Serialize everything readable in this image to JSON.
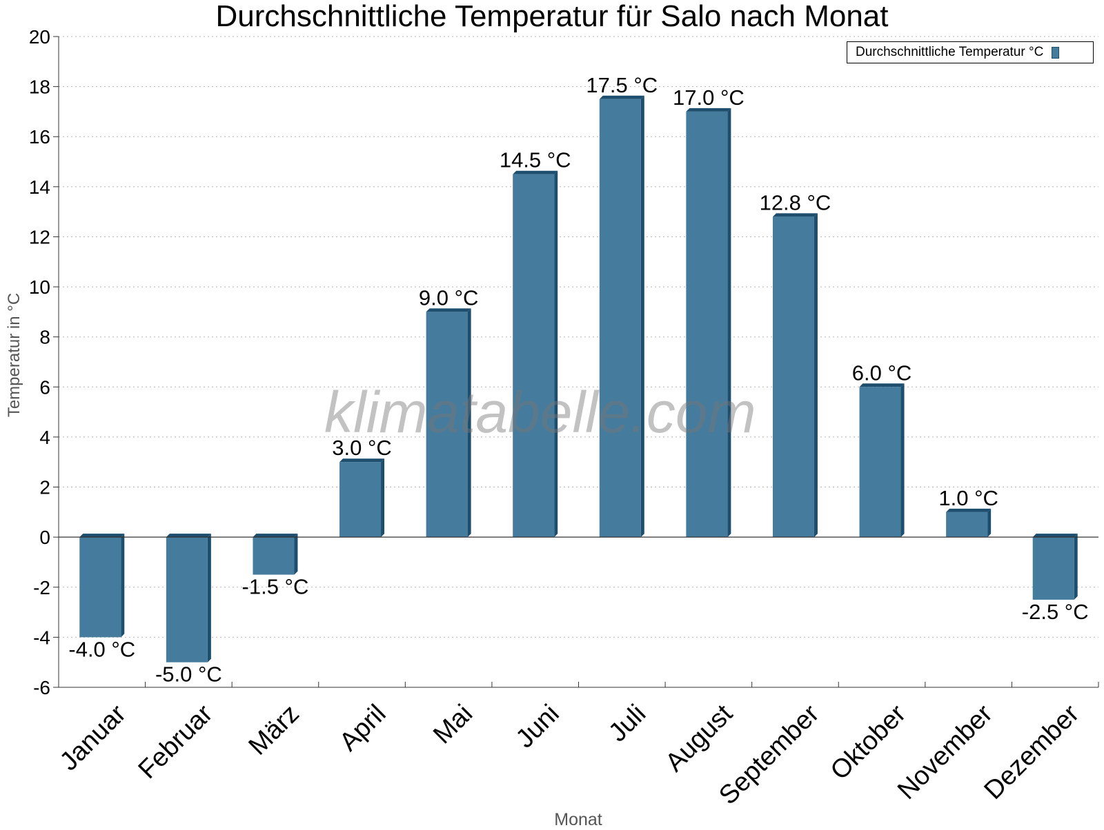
{
  "chart_data": {
    "type": "bar",
    "title": "Durchschnittliche Temperatur für Salo nach Monat",
    "xlabel": "Monat",
    "ylabel": "Temperatur in °C",
    "ylim": [
      -6,
      20
    ],
    "yticks": [
      -6,
      -4,
      -2,
      0,
      2,
      4,
      6,
      8,
      10,
      12,
      14,
      16,
      18,
      20
    ],
    "grid": true,
    "legend_position": "top-right",
    "categories": [
      "Januar",
      "Februar",
      "März",
      "April",
      "Mai",
      "Juni",
      "Juli",
      "August",
      "September",
      "Oktober",
      "November",
      "Dezember"
    ],
    "series": [
      {
        "name": "Durchschnittliche Temperatur °C",
        "values": [
          -4.0,
          -5.0,
          -1.5,
          3.0,
          9.0,
          14.5,
          17.5,
          17.0,
          12.8,
          6.0,
          1.0,
          -2.5
        ],
        "labels": [
          "-4.0 °C",
          "-5.0 °C",
          "-1.5 °C",
          "3.0 °C",
          "9.0 °C",
          "14.5 °C",
          "17.5 °C",
          "17.0 °C",
          "12.8 °C",
          "6.0 °C",
          "1.0 °C",
          "-2.5 °C"
        ]
      }
    ],
    "colors": {
      "bar": "#457b9d",
      "bar_edge": "#1d4e6e"
    },
    "watermark": "klimatabelle.com"
  }
}
